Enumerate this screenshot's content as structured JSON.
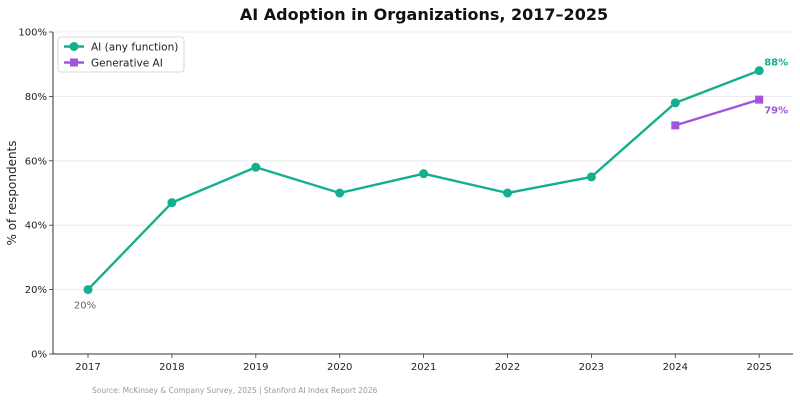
{
  "chart_data": {
    "type": "line",
    "title": "AI Adoption in Organizations, 2017–2025",
    "ylabel": "% of respondents",
    "xlabel": "",
    "categories": [
      "2017",
      "2018",
      "2019",
      "2020",
      "2021",
      "2022",
      "2023",
      "2024",
      "2025"
    ],
    "y_ticks": [
      "0%",
      "20%",
      "40%",
      "60%",
      "80%",
      "100%"
    ],
    "ylim": [
      0,
      100
    ],
    "grid": "horizontal",
    "legend_position": "top-left",
    "series": [
      {
        "name": "AI (any function)",
        "color": "#13b08f",
        "marker": "circle",
        "values": [
          20,
          47,
          58,
          50,
          56,
          50,
          55,
          78,
          88
        ]
      },
      {
        "name": "Generative AI",
        "color": "#a055dc",
        "marker": "square",
        "values": [
          null,
          null,
          null,
          null,
          null,
          null,
          null,
          71,
          79
        ]
      }
    ],
    "annotations": [
      {
        "text": "20%",
        "series": 0,
        "category": "2017",
        "color": "#666666",
        "bold": false,
        "placement": "below-left"
      },
      {
        "text": "88%",
        "series": 0,
        "category": "2025",
        "color": "#13b08f",
        "bold": true,
        "placement": "above-right"
      },
      {
        "text": "79%",
        "series": 1,
        "category": "2025",
        "color": "#a055dc",
        "bold": true,
        "placement": "below-right"
      }
    ],
    "source": "Source: McKinsey & Company Survey, 2025 | Stanford AI Index Report 2026"
  }
}
